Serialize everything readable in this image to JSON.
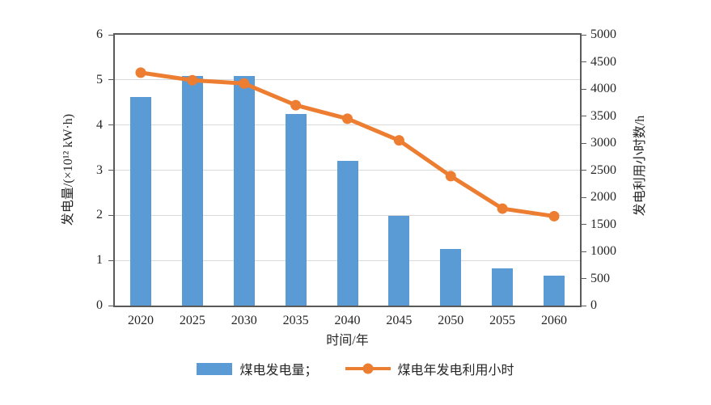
{
  "colors": {
    "bar": "#5b9bd5",
    "line": "#ed7d31",
    "grid": "#d9d9d9",
    "axis": "#5a5a5a",
    "text": "#262626"
  },
  "legend": {
    "bar_label": "煤电发电量；",
    "line_label": "煤电年发电利用小时"
  },
  "chart_data": {
    "type": "bar",
    "subtype": "bar+line dual axis",
    "categories": [
      "2020",
      "2025",
      "2030",
      "2035",
      "2040",
      "2045",
      "2050",
      "2055",
      "2060"
    ],
    "series": [
      {
        "name": "煤电发电量",
        "type": "bar",
        "axis": "left",
        "values": [
          4.63,
          5.08,
          5.08,
          4.25,
          3.2,
          1.98,
          1.25,
          0.83,
          0.67
        ]
      },
      {
        "name": "煤电年发电利用小时",
        "type": "line",
        "axis": "right",
        "values": [
          4300,
          4160,
          4100,
          3700,
          3450,
          3050,
          2390,
          1790,
          1650
        ]
      }
    ],
    "xlabel": "时间/年",
    "ylabel_left": "发电量/(×10¹² kW·h)",
    "ylabel_right": "发电利用小时数/h",
    "left_axis": {
      "min": 0,
      "max": 6,
      "ticks": [
        0,
        1,
        2,
        3,
        4,
        5,
        6
      ]
    },
    "right_axis": {
      "min": 0,
      "max": 5000,
      "ticks": [
        0,
        500,
        1000,
        1500,
        2000,
        2500,
        3000,
        3500,
        4000,
        4500,
        5000
      ]
    },
    "grid": "horizontal gridlines at left-axis integers 1-5",
    "legend_position": "bottom center"
  }
}
